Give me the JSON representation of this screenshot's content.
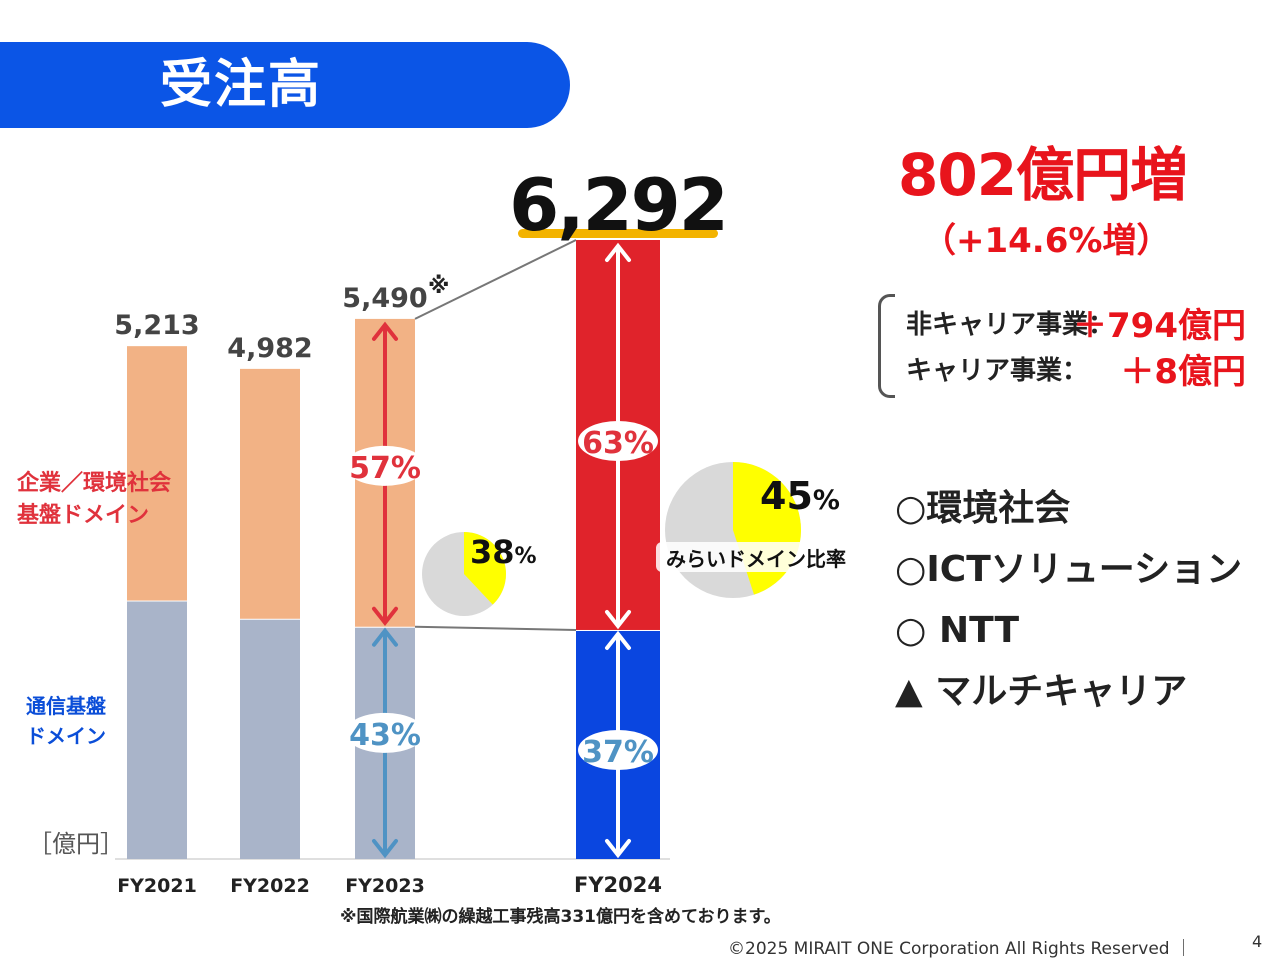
{
  "slide": {
    "title": "受注高",
    "headline": "802億円増",
    "subline": "（+14.6%増）",
    "breakdown": [
      {
        "label": "非キャリア事業：",
        "value": "＋794億円"
      },
      {
        "label": "キャリア事業：",
        "value": "＋8億円"
      }
    ],
    "domains": [
      "○環境社会",
      "○ICTソリューション",
      "○ NTT",
      "▲ マルチキャリア"
    ],
    "footnote": "※国際航業㈱の繰越工事残高331億円を含めております。",
    "copyright": "©2025 MIRAIT ONE Corporation All Rights Reserved ｜",
    "page_number": "4"
  },
  "chart_data": {
    "type": "bar",
    "stacked": true,
    "unit_label": "［億円］",
    "categories": [
      "FY2021",
      "FY2022",
      "FY2023",
      "FY2024"
    ],
    "totals": [
      5213,
      4982,
      5490,
      6292
    ],
    "total_labels": [
      "5,213",
      "4,982",
      "5,490",
      "6,292"
    ],
    "total_note": "※",
    "series": [
      {
        "name": "通信基盤ドメイン",
        "legend": [
          "通信基盤",
          "ドメイン"
        ],
        "values": [
          2627,
          2442,
          2361,
          2328
        ],
        "color": "#a9b4c9",
        "latest_color": "#0a46e0",
        "label_color": "#0b4ed8"
      },
      {
        "name": "企業／環境社会基盤ドメイン",
        "legend": [
          "企業／環境社会",
          "基盤ドメイン"
        ],
        "values": [
          2586,
          2540,
          3129,
          3964
        ],
        "color": "#f2b285",
        "latest_color": "#e0232b",
        "label_color": "#e0323c"
      }
    ],
    "share_labels": [
      {
        "category": "FY2023",
        "upper": "57%",
        "lower": "43%"
      },
      {
        "category": "FY2024",
        "upper": "63%",
        "lower": "37%"
      }
    ],
    "pies": [
      {
        "category": "FY2023",
        "value": 38,
        "label": "38",
        "unit": "%"
      },
      {
        "category": "FY2024",
        "value": 45,
        "label": "45",
        "unit": "%",
        "caption": "みらいドメイン比率"
      }
    ],
    "pie_colors": {
      "highlight": "#ffff00",
      "rest": "#d9d9d9"
    },
    "ylim": [
      0,
      6800
    ]
  }
}
